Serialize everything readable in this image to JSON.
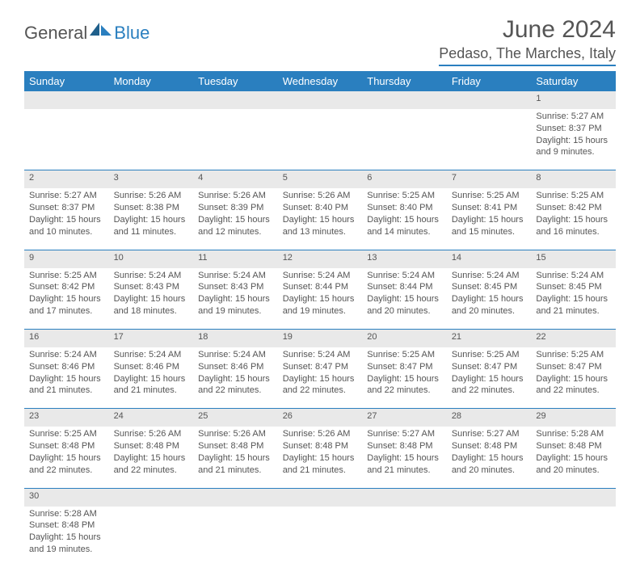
{
  "brand": {
    "part1": "General",
    "part2": "Blue"
  },
  "title": "June 2024",
  "location": "Pedaso, The Marches, Italy",
  "colors": {
    "header_bg": "#2a7fbf",
    "header_text": "#ffffff",
    "daynum_bg": "#e9e9e9",
    "text": "#555555",
    "rule": "#2a7fbf"
  },
  "columns": [
    "Sunday",
    "Monday",
    "Tuesday",
    "Wednesday",
    "Thursday",
    "Friday",
    "Saturday"
  ],
  "weeks": [
    [
      null,
      null,
      null,
      null,
      null,
      null,
      {
        "n": "1",
        "sr": "Sunrise: 5:27 AM",
        "ss": "Sunset: 8:37 PM",
        "d1": "Daylight: 15 hours",
        "d2": "and 9 minutes."
      }
    ],
    [
      {
        "n": "2",
        "sr": "Sunrise: 5:27 AM",
        "ss": "Sunset: 8:37 PM",
        "d1": "Daylight: 15 hours",
        "d2": "and 10 minutes."
      },
      {
        "n": "3",
        "sr": "Sunrise: 5:26 AM",
        "ss": "Sunset: 8:38 PM",
        "d1": "Daylight: 15 hours",
        "d2": "and 11 minutes."
      },
      {
        "n": "4",
        "sr": "Sunrise: 5:26 AM",
        "ss": "Sunset: 8:39 PM",
        "d1": "Daylight: 15 hours",
        "d2": "and 12 minutes."
      },
      {
        "n": "5",
        "sr": "Sunrise: 5:26 AM",
        "ss": "Sunset: 8:40 PM",
        "d1": "Daylight: 15 hours",
        "d2": "and 13 minutes."
      },
      {
        "n": "6",
        "sr": "Sunrise: 5:25 AM",
        "ss": "Sunset: 8:40 PM",
        "d1": "Daylight: 15 hours",
        "d2": "and 14 minutes."
      },
      {
        "n": "7",
        "sr": "Sunrise: 5:25 AM",
        "ss": "Sunset: 8:41 PM",
        "d1": "Daylight: 15 hours",
        "d2": "and 15 minutes."
      },
      {
        "n": "8",
        "sr": "Sunrise: 5:25 AM",
        "ss": "Sunset: 8:42 PM",
        "d1": "Daylight: 15 hours",
        "d2": "and 16 minutes."
      }
    ],
    [
      {
        "n": "9",
        "sr": "Sunrise: 5:25 AM",
        "ss": "Sunset: 8:42 PM",
        "d1": "Daylight: 15 hours",
        "d2": "and 17 minutes."
      },
      {
        "n": "10",
        "sr": "Sunrise: 5:24 AM",
        "ss": "Sunset: 8:43 PM",
        "d1": "Daylight: 15 hours",
        "d2": "and 18 minutes."
      },
      {
        "n": "11",
        "sr": "Sunrise: 5:24 AM",
        "ss": "Sunset: 8:43 PM",
        "d1": "Daylight: 15 hours",
        "d2": "and 19 minutes."
      },
      {
        "n": "12",
        "sr": "Sunrise: 5:24 AM",
        "ss": "Sunset: 8:44 PM",
        "d1": "Daylight: 15 hours",
        "d2": "and 19 minutes."
      },
      {
        "n": "13",
        "sr": "Sunrise: 5:24 AM",
        "ss": "Sunset: 8:44 PM",
        "d1": "Daylight: 15 hours",
        "d2": "and 20 minutes."
      },
      {
        "n": "14",
        "sr": "Sunrise: 5:24 AM",
        "ss": "Sunset: 8:45 PM",
        "d1": "Daylight: 15 hours",
        "d2": "and 20 minutes."
      },
      {
        "n": "15",
        "sr": "Sunrise: 5:24 AM",
        "ss": "Sunset: 8:45 PM",
        "d1": "Daylight: 15 hours",
        "d2": "and 21 minutes."
      }
    ],
    [
      {
        "n": "16",
        "sr": "Sunrise: 5:24 AM",
        "ss": "Sunset: 8:46 PM",
        "d1": "Daylight: 15 hours",
        "d2": "and 21 minutes."
      },
      {
        "n": "17",
        "sr": "Sunrise: 5:24 AM",
        "ss": "Sunset: 8:46 PM",
        "d1": "Daylight: 15 hours",
        "d2": "and 21 minutes."
      },
      {
        "n": "18",
        "sr": "Sunrise: 5:24 AM",
        "ss": "Sunset: 8:46 PM",
        "d1": "Daylight: 15 hours",
        "d2": "and 22 minutes."
      },
      {
        "n": "19",
        "sr": "Sunrise: 5:24 AM",
        "ss": "Sunset: 8:47 PM",
        "d1": "Daylight: 15 hours",
        "d2": "and 22 minutes."
      },
      {
        "n": "20",
        "sr": "Sunrise: 5:25 AM",
        "ss": "Sunset: 8:47 PM",
        "d1": "Daylight: 15 hours",
        "d2": "and 22 minutes."
      },
      {
        "n": "21",
        "sr": "Sunrise: 5:25 AM",
        "ss": "Sunset: 8:47 PM",
        "d1": "Daylight: 15 hours",
        "d2": "and 22 minutes."
      },
      {
        "n": "22",
        "sr": "Sunrise: 5:25 AM",
        "ss": "Sunset: 8:47 PM",
        "d1": "Daylight: 15 hours",
        "d2": "and 22 minutes."
      }
    ],
    [
      {
        "n": "23",
        "sr": "Sunrise: 5:25 AM",
        "ss": "Sunset: 8:48 PM",
        "d1": "Daylight: 15 hours",
        "d2": "and 22 minutes."
      },
      {
        "n": "24",
        "sr": "Sunrise: 5:26 AM",
        "ss": "Sunset: 8:48 PM",
        "d1": "Daylight: 15 hours",
        "d2": "and 22 minutes."
      },
      {
        "n": "25",
        "sr": "Sunrise: 5:26 AM",
        "ss": "Sunset: 8:48 PM",
        "d1": "Daylight: 15 hours",
        "d2": "and 21 minutes."
      },
      {
        "n": "26",
        "sr": "Sunrise: 5:26 AM",
        "ss": "Sunset: 8:48 PM",
        "d1": "Daylight: 15 hours",
        "d2": "and 21 minutes."
      },
      {
        "n": "27",
        "sr": "Sunrise: 5:27 AM",
        "ss": "Sunset: 8:48 PM",
        "d1": "Daylight: 15 hours",
        "d2": "and 21 minutes."
      },
      {
        "n": "28",
        "sr": "Sunrise: 5:27 AM",
        "ss": "Sunset: 8:48 PM",
        "d1": "Daylight: 15 hours",
        "d2": "and 20 minutes."
      },
      {
        "n": "29",
        "sr": "Sunrise: 5:28 AM",
        "ss": "Sunset: 8:48 PM",
        "d1": "Daylight: 15 hours",
        "d2": "and 20 minutes."
      }
    ],
    [
      {
        "n": "30",
        "sr": "Sunrise: 5:28 AM",
        "ss": "Sunset: 8:48 PM",
        "d1": "Daylight: 15 hours",
        "d2": "and 19 minutes."
      },
      null,
      null,
      null,
      null,
      null,
      null
    ]
  ]
}
